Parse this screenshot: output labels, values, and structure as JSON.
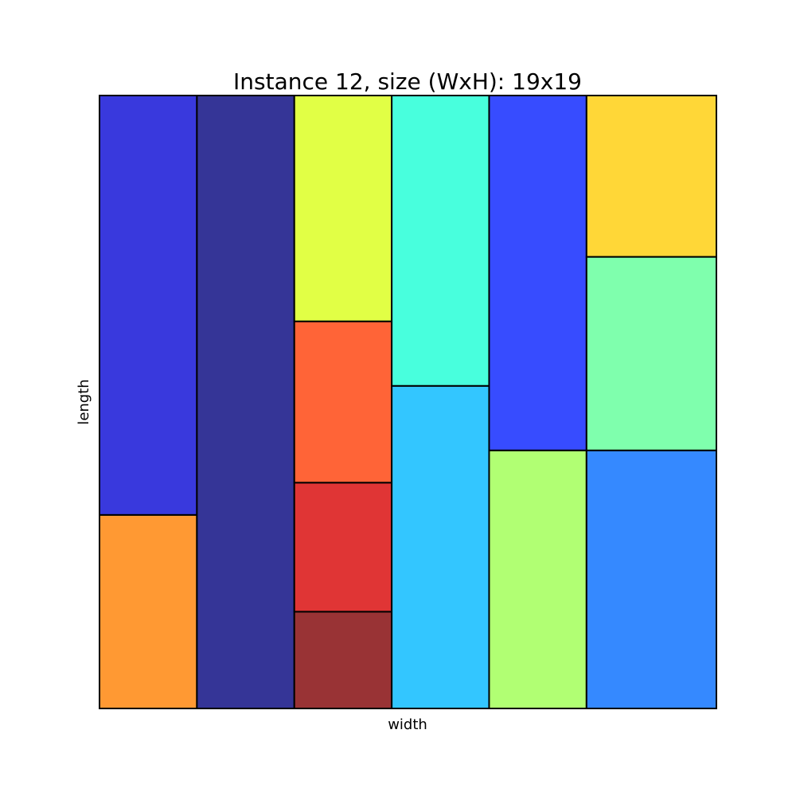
{
  "chart_data": {
    "type": "rectangle-packing",
    "title": "Instance 12, size (WxH): 19x19",
    "xlabel": "width",
    "ylabel": "length",
    "xlim": [
      0,
      19
    ],
    "ylim": [
      0,
      19
    ],
    "grid": false,
    "rectangles": [
      {
        "x": 0,
        "y": 0,
        "w": 3,
        "h": 6,
        "color": "#ff9933"
      },
      {
        "x": 0,
        "y": 6,
        "w": 3,
        "h": 13,
        "color": "#3939dd"
      },
      {
        "x": 3,
        "y": 0,
        "w": 3,
        "h": 19,
        "color": "#353597"
      },
      {
        "x": 6,
        "y": 0,
        "w": 3,
        "h": 3,
        "color": "#993335"
      },
      {
        "x": 6,
        "y": 3,
        "w": 3,
        "h": 4,
        "color": "#e03535"
      },
      {
        "x": 6,
        "y": 7,
        "w": 3,
        "h": 5,
        "color": "#ff6437"
      },
      {
        "x": 6,
        "y": 12,
        "w": 3,
        "h": 7,
        "color": "#e1ff45"
      },
      {
        "x": 9,
        "y": 0,
        "w": 3,
        "h": 10,
        "color": "#33c6ff"
      },
      {
        "x": 9,
        "y": 10,
        "w": 3,
        "h": 9,
        "color": "#48ffdd"
      },
      {
        "x": 12,
        "y": 0,
        "w": 3,
        "h": 8,
        "color": "#b1ff73"
      },
      {
        "x": 12,
        "y": 8,
        "w": 3,
        "h": 11,
        "color": "#374cff"
      },
      {
        "x": 15,
        "y": 0,
        "w": 4,
        "h": 8,
        "color": "#3589ff"
      },
      {
        "x": 15,
        "y": 8,
        "w": 4,
        "h": 6,
        "color": "#7fffad"
      },
      {
        "x": 15,
        "y": 14,
        "w": 4,
        "h": 5,
        "color": "#ffd737"
      }
    ]
  }
}
